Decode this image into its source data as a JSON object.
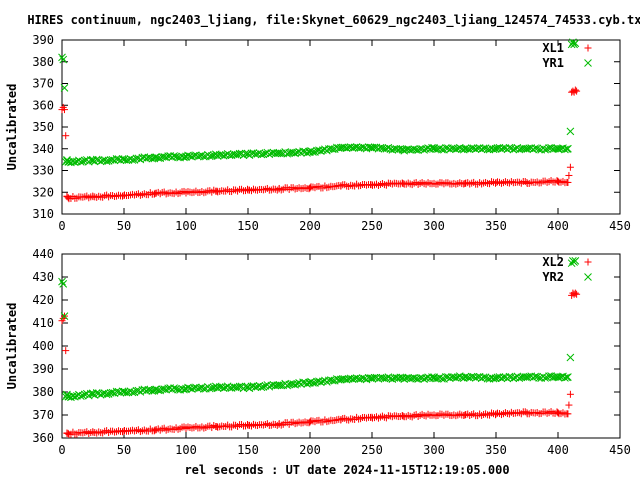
{
  "title": "HIRES continuum, ngc2403_ljiang, file:Skynet_60629_ngc2403_ljiang_124574_74533.cyb.txt",
  "chart_data": [
    {
      "type": "scatter",
      "ylabel": "Uncalibrated",
      "xlabel": "",
      "xlim": [
        0,
        450
      ],
      "ylim": [
        310,
        390
      ],
      "xticks": [
        0,
        50,
        100,
        150,
        200,
        250,
        300,
        350,
        400,
        450
      ],
      "yticks": [
        310,
        320,
        330,
        340,
        350,
        360,
        370,
        380,
        390
      ],
      "grid": false,
      "legend_position": "top-right",
      "series": [
        {
          "name": "XL1",
          "marker": "plus",
          "color": "#ff0000",
          "x": [
            0,
            1,
            2,
            3,
            4,
            5,
            25,
            50,
            75,
            100,
            125,
            150,
            175,
            200,
            225,
            250,
            275,
            300,
            325,
            350,
            375,
            400,
            408,
            410,
            411,
            412,
            413,
            414,
            415
          ],
          "y": [
            358,
            359,
            358,
            346,
            318,
            317.5,
            318,
            318.5,
            319.5,
            320,
            320.5,
            321,
            321.5,
            322,
            323,
            323.5,
            324,
            324,
            324,
            324.5,
            324.5,
            325,
            324.5,
            331.5,
            366,
            366.5,
            366,
            367,
            366.5
          ]
        },
        {
          "name": "YR1",
          "marker": "cross",
          "color": "#00bb00",
          "x": [
            0,
            1,
            2,
            3,
            4,
            5,
            25,
            50,
            75,
            100,
            125,
            150,
            175,
            200,
            225,
            250,
            275,
            300,
            325,
            350,
            375,
            400,
            408,
            410,
            411,
            412,
            413,
            414
          ],
          "y": [
            382,
            381,
            368,
            334,
            334.5,
            334,
            334.5,
            335,
            336,
            336.5,
            337,
            337.5,
            338,
            338.5,
            340.5,
            340.5,
            339.5,
            340,
            340,
            340,
            340,
            340,
            340,
            348,
            388,
            389,
            388,
            388.5
          ]
        }
      ]
    },
    {
      "type": "scatter",
      "ylabel": "Uncalibrated",
      "xlabel": "rel seconds : UT date 2024-11-15T12:19:05.000",
      "xlim": [
        0,
        450
      ],
      "ylim": [
        360,
        440
      ],
      "xticks": [
        0,
        50,
        100,
        150,
        200,
        250,
        300,
        350,
        400,
        450
      ],
      "yticks": [
        360,
        370,
        380,
        390,
        400,
        410,
        420,
        430,
        440
      ],
      "grid": false,
      "legend_position": "top-right",
      "series": [
        {
          "name": "XL2",
          "marker": "plus",
          "color": "#ff0000",
          "x": [
            0,
            1,
            2,
            3,
            4,
            5,
            25,
            50,
            75,
            100,
            125,
            150,
            175,
            200,
            225,
            250,
            275,
            300,
            325,
            350,
            375,
            400,
            408,
            410,
            411,
            412,
            413,
            414,
            415
          ],
          "y": [
            411,
            412,
            413,
            398,
            362,
            362,
            362.5,
            363,
            363.5,
            364.5,
            365,
            365.5,
            366,
            367,
            368,
            369,
            369.5,
            370,
            370,
            370.5,
            371,
            371,
            370.5,
            379,
            422,
            423,
            422.5,
            423,
            422.5
          ]
        },
        {
          "name": "YR2",
          "marker": "cross",
          "color": "#00bb00",
          "x": [
            0,
            1,
            2,
            3,
            4,
            5,
            25,
            50,
            75,
            100,
            125,
            150,
            175,
            200,
            225,
            250,
            275,
            300,
            325,
            350,
            375,
            400,
            408,
            410,
            411,
            412,
            413,
            414
          ],
          "y": [
            428,
            427,
            413,
            378,
            378.5,
            378,
            379,
            380,
            381,
            381.5,
            382,
            382,
            383,
            384,
            385.5,
            386,
            386,
            386,
            386.5,
            386,
            386.5,
            386.5,
            386.5,
            395,
            436,
            437,
            436.5,
            437
          ]
        }
      ]
    }
  ]
}
